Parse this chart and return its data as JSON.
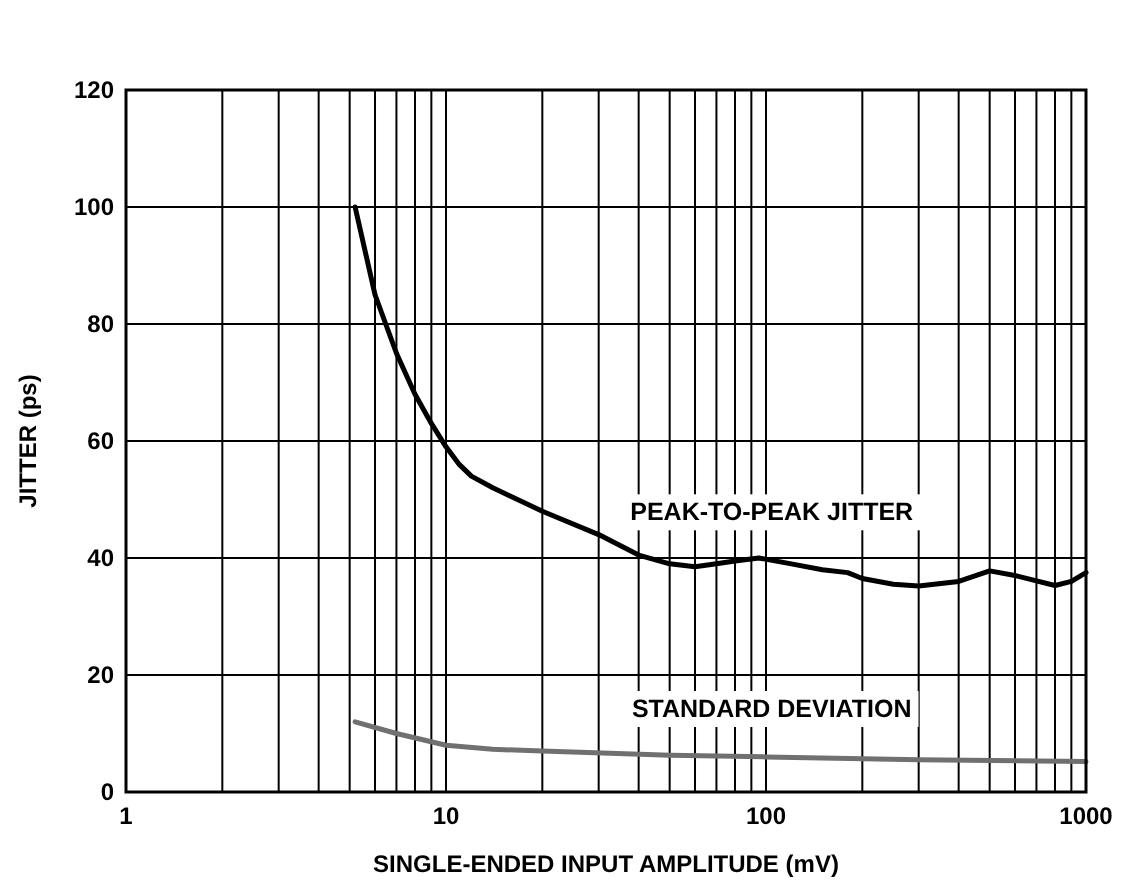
{
  "chart_data": {
    "type": "line",
    "xlabel": "SINGLE-ENDED INPUT AMPLITUDE (mV)",
    "ylabel": "JITTER (ps)",
    "log": "x",
    "grid": true,
    "marker": "none",
    "line_style": "solid",
    "xlim": [
      1,
      1000
    ],
    "ylim": [
      0,
      120
    ],
    "xticks": [
      1,
      {
        "value": 2,
        "label": null
      },
      {
        "value": 3,
        "label": null
      },
      {
        "value": 4,
        "label": null
      },
      {
        "value": 5,
        "label": null
      },
      {
        "value": 6,
        "label": null
      },
      {
        "value": 7,
        "label": null
      },
      {
        "value": 8,
        "label": null
      },
      {
        "value": 9,
        "label": null
      },
      10,
      {
        "value": 20,
        "label": null
      },
      {
        "value": 30,
        "label": null
      },
      {
        "value": 40,
        "label": null
      },
      {
        "value": 50,
        "label": null
      },
      {
        "value": 60,
        "label": null
      },
      {
        "value": 70,
        "label": null
      },
      {
        "value": 80,
        "label": null
      },
      {
        "value": 90,
        "label": null
      },
      100,
      {
        "value": 200,
        "label": null
      },
      {
        "value": 300,
        "label": null
      },
      {
        "value": 400,
        "label": null
      },
      {
        "value": 500,
        "label": null
      },
      {
        "value": 600,
        "label": null
      },
      {
        "value": 700,
        "label": null
      },
      {
        "value": 800,
        "label": null
      },
      {
        "value": 900,
        "label": null
      },
      1000
    ],
    "yticks": [
      0,
      20,
      40,
      60,
      80,
      100,
      120
    ],
    "series": [
      {
        "name": "PEAK-TO-PEAK JITTER",
        "color": "#000000",
        "x": [
          5.2,
          6,
          7,
          8,
          9,
          10,
          11,
          12,
          14,
          20,
          30,
          40,
          50,
          60,
          70,
          80,
          95,
          120,
          150,
          180,
          200,
          250,
          300,
          400,
          500,
          600,
          800,
          900,
          1000
        ],
        "values": [
          100,
          85,
          75,
          68,
          63,
          59,
          56,
          54,
          52,
          48,
          44,
          40.5,
          39,
          38.5,
          39,
          39.5,
          40,
          39,
          38,
          37.5,
          36.5,
          35.5,
          35.2,
          36,
          37.8,
          37,
          35.3,
          36,
          37.5
        ]
      },
      {
        "name": "STANDARD DEVIATION",
        "color": "#707070",
        "x": [
          5.2,
          7,
          10,
          14,
          20,
          50,
          100,
          300,
          1000
        ],
        "values": [
          12,
          10,
          8,
          7.3,
          7,
          6.3,
          6,
          5.5,
          5.2
        ]
      }
    ]
  }
}
